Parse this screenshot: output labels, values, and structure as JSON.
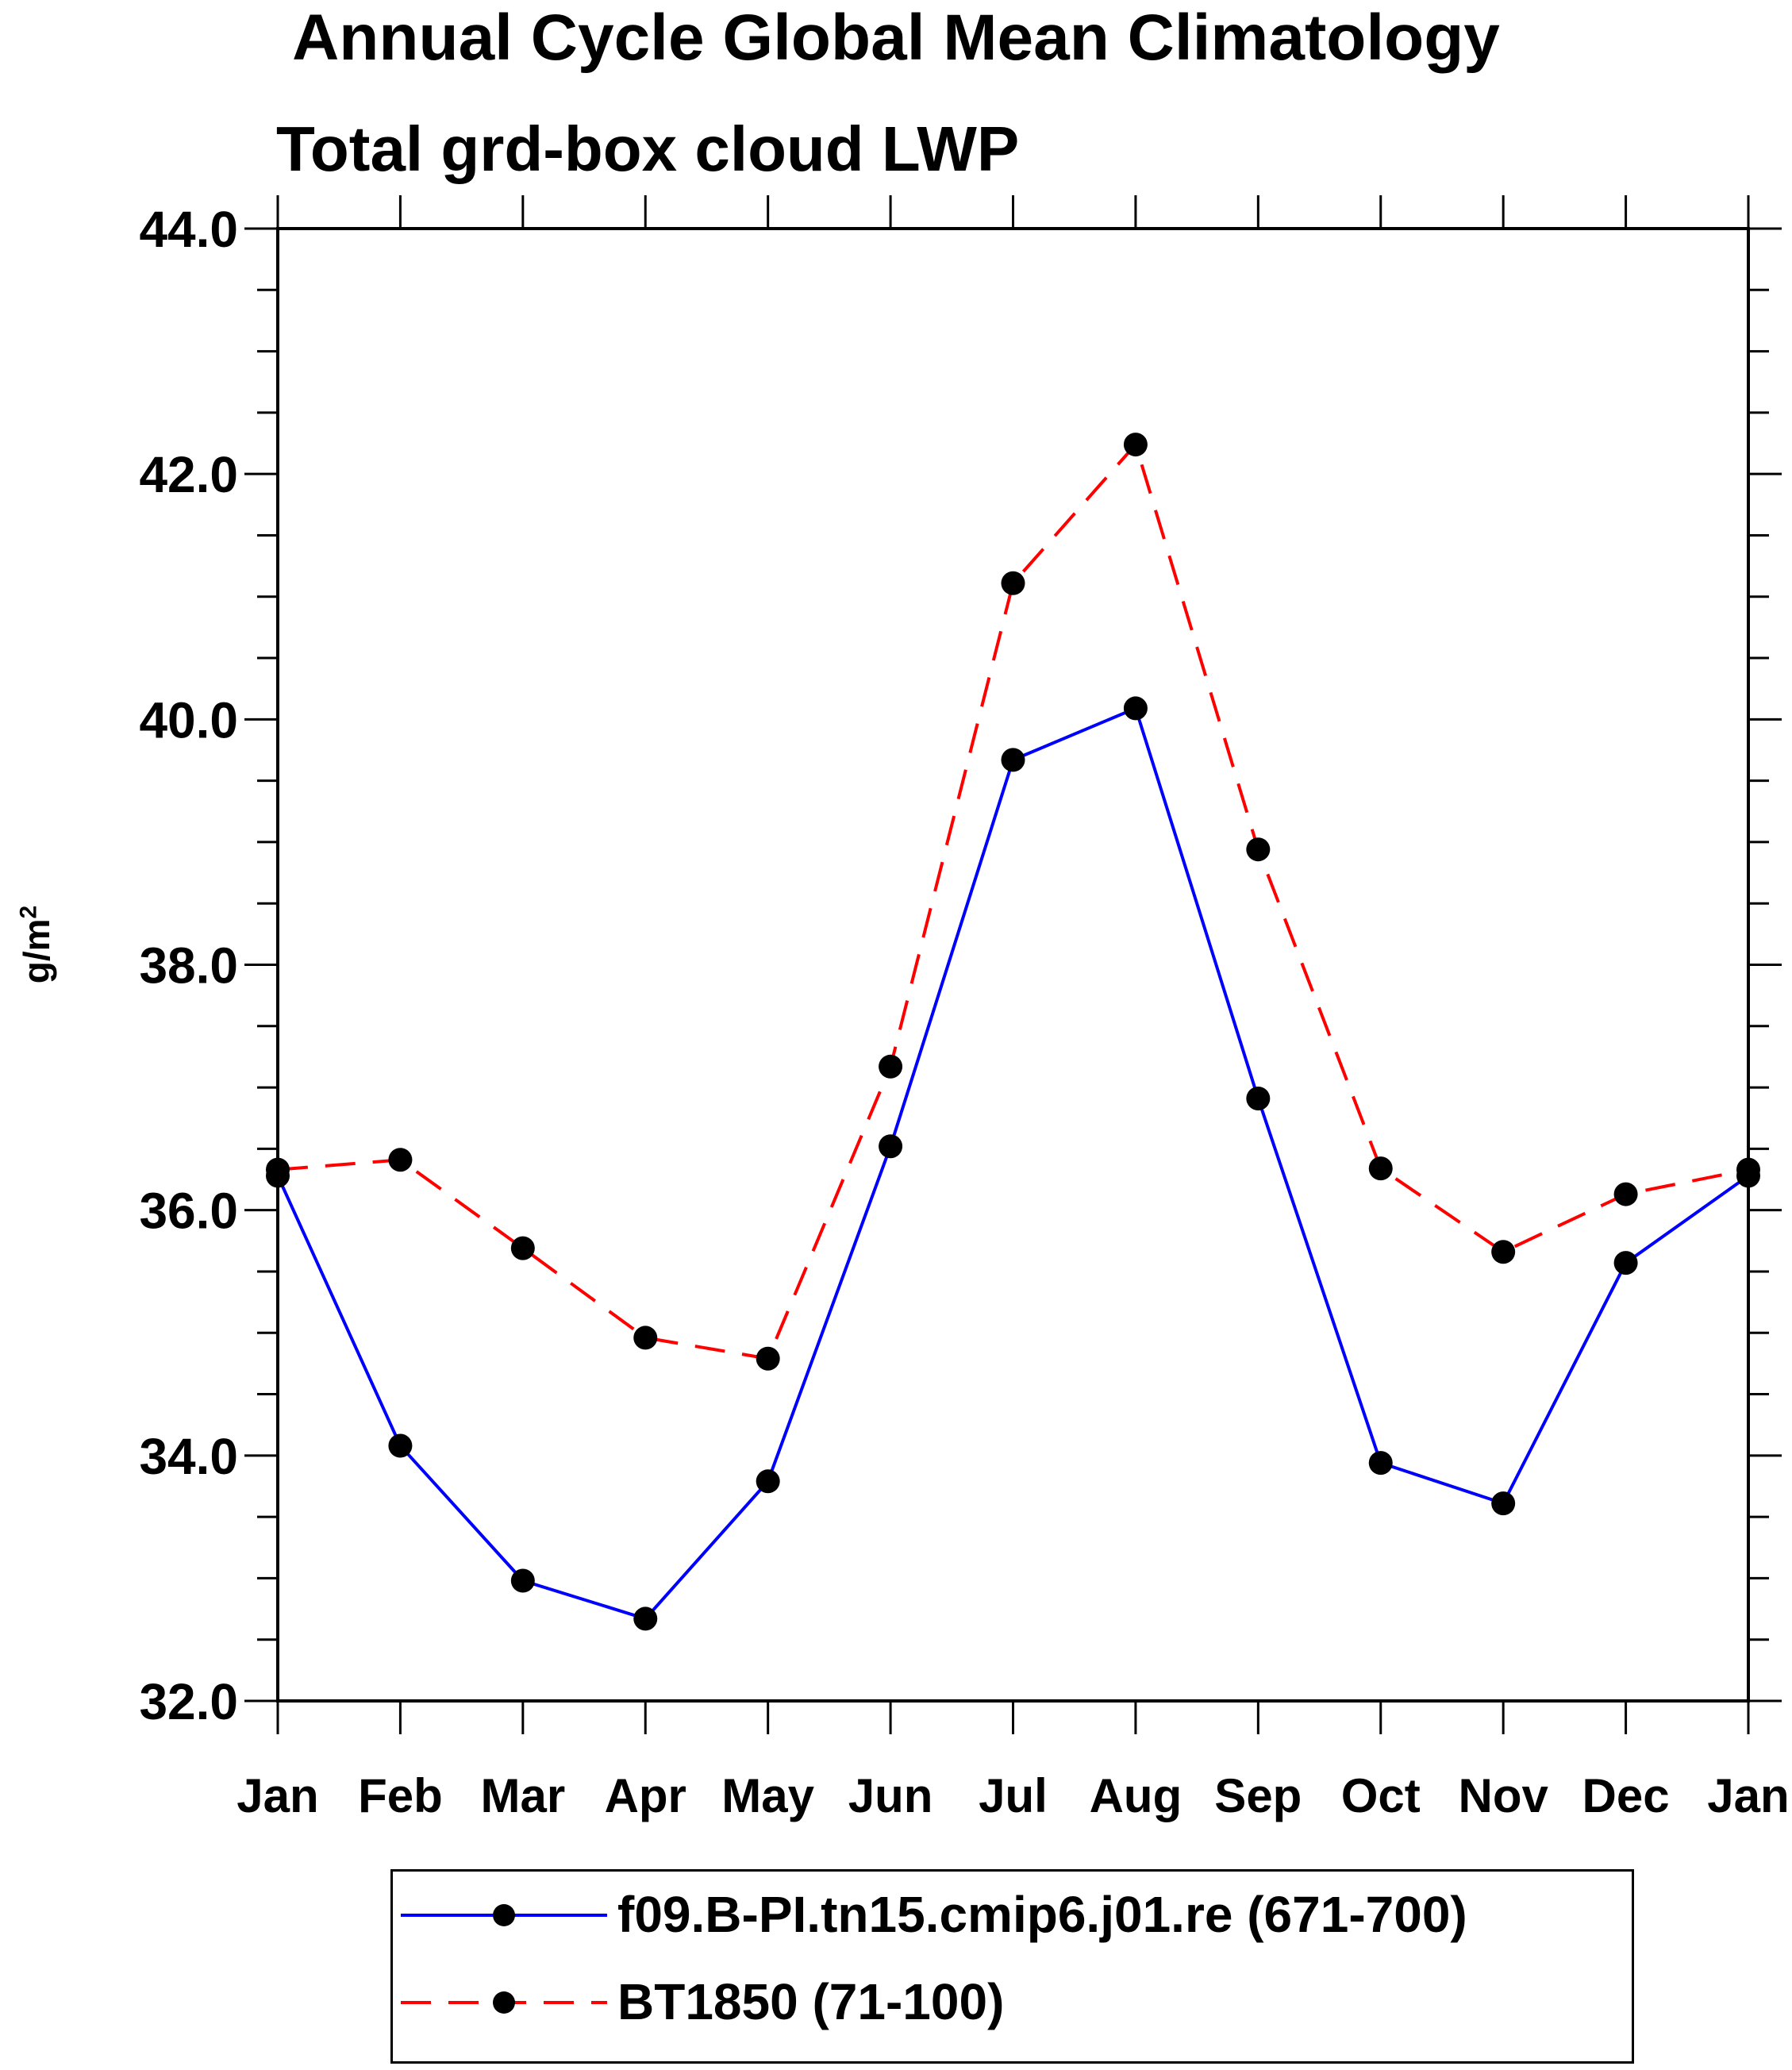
{
  "chart_data": {
    "type": "line",
    "title": "Annual Cycle Global Mean Climatology",
    "subtitle": "Total grd-box cloud LWP",
    "xlabel": "",
    "ylabel": "g/m",
    "ylabel_superscript": "2",
    "categories": [
      "Jan",
      "Feb",
      "Mar",
      "Apr",
      "May",
      "Jun",
      "Jul",
      "Aug",
      "Sep",
      "Oct",
      "Nov",
      "Dec",
      "Jan"
    ],
    "ylim": [
      32.0,
      44.0
    ],
    "yticks": [
      "32.0",
      "34.0",
      "36.0",
      "38.0",
      "40.0",
      "42.0",
      "44.0"
    ],
    "series": [
      {
        "name": "f09.B-PI.tn15.cmip6.j01.re (671-700)",
        "color": "#0000ff",
        "dash": "solid",
        "values": [
          36.28,
          34.08,
          32.98,
          32.67,
          33.79,
          36.52,
          39.67,
          40.09,
          36.91,
          33.94,
          33.61,
          35.57,
          36.28
        ]
      },
      {
        "name": "BT1850 (71-100)",
        "color": "#ff0000",
        "dash": "dashed",
        "values": [
          36.33,
          36.41,
          35.69,
          34.96,
          34.79,
          37.17,
          41.11,
          42.24,
          38.94,
          36.34,
          35.66,
          36.13,
          36.33
        ]
      }
    ]
  }
}
